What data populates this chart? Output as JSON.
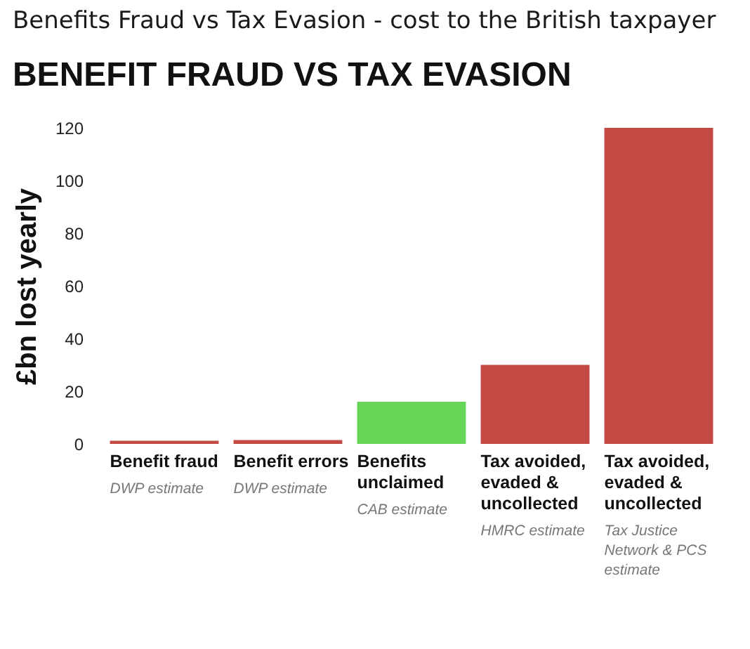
{
  "chart_data": {
    "type": "bar",
    "title": "Benefits Fraud vs Tax Evasion - cost to the British taxpayer",
    "subtitle": "BENEFIT FRAUD VS TAX EVASION",
    "ylabel": "£bn lost yearly",
    "categories": [
      "Benefit fraud",
      "Benefit errors",
      "Benefits unclaimed",
      "Tax avoided, evaded & uncollected",
      "Tax avoided, evaded & uncollected"
    ],
    "values": [
      1.2,
      1.5,
      16,
      30,
      120
    ],
    "colors": [
      "#c24a43",
      "#c24a43",
      "#66d558",
      "#c24a43",
      "#c24a43"
    ],
    "annotations": [
      "DWP estimate",
      "DWP estimate",
      "CAB estimate",
      "HMRC estimate",
      "Tax Justice Network & PCS estimate"
    ],
    "ylim": [
      0,
      120
    ],
    "yticks": [
      0,
      20,
      40,
      60,
      80,
      100,
      120
    ],
    "grid": false
  }
}
